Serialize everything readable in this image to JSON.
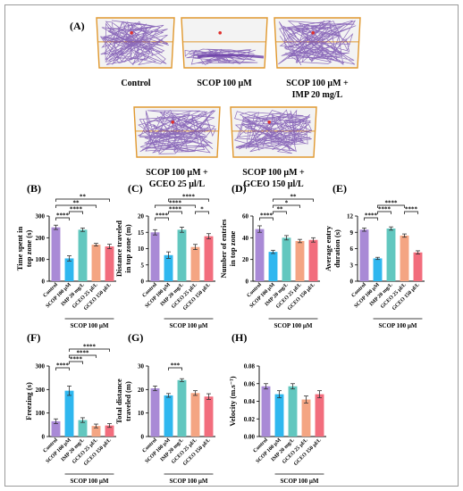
{
  "figure": {
    "panel_letters": [
      "(A)",
      "(B)",
      "(C)",
      "(D)",
      "(E)",
      "(F)",
      "(G)",
      "(H)"
    ],
    "track_labels": [
      [
        "Control"
      ],
      [
        "SCOP 100 µM"
      ],
      [
        "SCOP 100 µM +",
        "IMP 20 mg/L"
      ],
      [
        "SCOP 100 µM +",
        "GCEO 25 µl/L"
      ],
      [
        "SCOP 100 µM +",
        "GCEO 150 µl/L"
      ]
    ],
    "group_label": "SCOP 100 µM",
    "colors": {
      "control": "#a98ad6",
      "scop": "#2fb7ef",
      "imp": "#62c7bf",
      "gceo25": "#f4a583",
      "gceo150": "#f26d7d",
      "track": "#6b3fa8",
      "tank_border": "#e0982e"
    }
  },
  "chart_data": [
    {
      "type": "bar",
      "panel": "(B)",
      "ylabel_lines": [
        "Time spent in",
        "top zone (s)"
      ],
      "categories": [
        "Control",
        "SCOP 100 µM",
        "IMP 20 mg/L",
        "GCEO 25 µl/L",
        "GCEO 150 µl/L"
      ],
      "values": [
        248,
        105,
        237,
        168,
        160
      ],
      "errors": [
        10,
        12,
        8,
        6,
        10
      ],
      "ylim": [
        0,
        300
      ],
      "yticks": [
        0,
        100,
        200,
        300
      ],
      "brackets": [
        {
          "from": 0,
          "to": 1,
          "label": "****",
          "level": 0
        },
        {
          "from": 1,
          "to": 2,
          "label": "****",
          "level": 1
        },
        {
          "from": 0,
          "to": 3,
          "label": "**",
          "level": 2
        },
        {
          "from": 0,
          "to": 4,
          "label": "**",
          "level": 3
        }
      ]
    },
    {
      "type": "bar",
      "panel": "(C)",
      "ylabel_lines": [
        "Distance traveled",
        "in top zone (m)"
      ],
      "categories": [
        "Control",
        "SCOP 100 µM",
        "IMP 20 mg/L",
        "GCEO 25 µl/L",
        "GCEO 150 µl/L"
      ],
      "values": [
        15,
        8,
        15.8,
        10.5,
        13.8
      ],
      "errors": [
        0.8,
        1.0,
        0.8,
        0.8,
        0.8
      ],
      "ylim": [
        0,
        20
      ],
      "yticks": [
        0,
        5,
        10,
        15,
        20
      ],
      "brackets": [
        {
          "from": 0,
          "to": 1,
          "label": "****",
          "level": 0
        },
        {
          "from": 1,
          "to": 2,
          "label": "****",
          "level": 1
        },
        {
          "from": 3,
          "to": 4,
          "label": "*",
          "level": 1
        },
        {
          "from": 0,
          "to": 3,
          "label": "****",
          "level": 2
        },
        {
          "from": 1,
          "to": 4,
          "label": "****",
          "level": 3
        }
      ]
    },
    {
      "type": "bar",
      "panel": "(D)",
      "ylabel_lines": [
        "Number of entries",
        "in top zone"
      ],
      "categories": [
        "Control",
        "SCOP 100 µM",
        "IMP 20 mg/L",
        "GCEO 25 µl/L",
        "GCEO 150 µl/L"
      ],
      "values": [
        48,
        27,
        40,
        37,
        38
      ],
      "errors": [
        3,
        1.5,
        2,
        1.5,
        2
      ],
      "ylim": [
        0,
        60
      ],
      "yticks": [
        0,
        20,
        40,
        60
      ],
      "brackets": [
        {
          "from": 0,
          "to": 1,
          "label": "****",
          "level": 0
        },
        {
          "from": 1,
          "to": 2,
          "label": "**",
          "level": 1
        },
        {
          "from": 1,
          "to": 3,
          "label": "*",
          "level": 2
        },
        {
          "from": 1,
          "to": 4,
          "label": "**",
          "level": 3
        }
      ]
    },
    {
      "type": "bar",
      "panel": "(E)",
      "ylabel_lines": [
        "Average entry",
        "duration (s)"
      ],
      "categories": [
        "Control",
        "SCOP 100 µM",
        "IMP 20 mg/L",
        "GCEO 25 µl/L",
        "GCEO 150 µl/L"
      ],
      "values": [
        9.5,
        4.2,
        9.7,
        8.4,
        5.3
      ],
      "errors": [
        0.3,
        0.2,
        0.3,
        0.3,
        0.3
      ],
      "ylim": [
        0,
        12
      ],
      "yticks": [
        0,
        3,
        6,
        9,
        12
      ],
      "brackets": [
        {
          "from": 0,
          "to": 1,
          "label": "****",
          "level": 0
        },
        {
          "from": 1,
          "to": 2,
          "label": "****",
          "level": 1
        },
        {
          "from": 3,
          "to": 4,
          "label": "****",
          "level": 1
        },
        {
          "from": 1,
          "to": 3,
          "label": "****",
          "level": 2
        }
      ]
    },
    {
      "type": "bar",
      "panel": "(F)",
      "ylabel_lines": [
        "Freezing (s)"
      ],
      "categories": [
        "Control",
        "SCOP 100 µM",
        "IMP 20 mg/L",
        "GCEO 25 µl/L",
        "GCEO 150 µl/L"
      ],
      "values": [
        65,
        195,
        70,
        45,
        47
      ],
      "errors": [
        10,
        20,
        10,
        8,
        8
      ],
      "ylim": [
        0,
        300
      ],
      "yticks": [
        0,
        100,
        200,
        300
      ],
      "brackets": [
        {
          "from": 0,
          "to": 1,
          "label": "****",
          "level": 0
        },
        {
          "from": 1,
          "to": 2,
          "label": "****",
          "level": 1
        },
        {
          "from": 1,
          "to": 3,
          "label": "****",
          "level": 2
        },
        {
          "from": 1,
          "to": 4,
          "label": "****",
          "level": 3
        }
      ]
    },
    {
      "type": "bar",
      "panel": "(G)",
      "ylabel_lines": [
        "Total distance",
        "traveled (m)"
      ],
      "categories": [
        "Control",
        "SCOP 100 µM",
        "IMP 20 mg/L",
        "GCEO 25 µl/L",
        "GCEO 150 µl/L"
      ],
      "values": [
        20.5,
        17.5,
        24,
        18.5,
        17
      ],
      "errors": [
        1,
        0.8,
        0.6,
        1,
        1.2
      ],
      "ylim": [
        0,
        30
      ],
      "yticks": [
        0,
        10,
        20,
        30
      ],
      "brackets": [
        {
          "from": 1,
          "to": 2,
          "label": "***",
          "level": 0
        }
      ]
    },
    {
      "type": "bar",
      "panel": "(H)",
      "ylabel_lines": [
        "Velocity (m.s⁻¹)"
      ],
      "categories": [
        "Control",
        "SCOP 100 µM",
        "IMP 20 mg/L",
        "GCEO 25 µl/L",
        "GCEO 150 µl/L"
      ],
      "values": [
        0.057,
        0.048,
        0.057,
        0.042,
        0.048
      ],
      "errors": [
        0.003,
        0.004,
        0.003,
        0.004,
        0.004
      ],
      "ylim": [
        0,
        0.08
      ],
      "yticks": [
        0,
        0.02,
        0.04,
        0.06,
        0.08
      ],
      "yticklabels": [
        "0.00",
        "0.02",
        "0.04",
        "0.06",
        "0.08"
      ],
      "brackets": []
    }
  ]
}
